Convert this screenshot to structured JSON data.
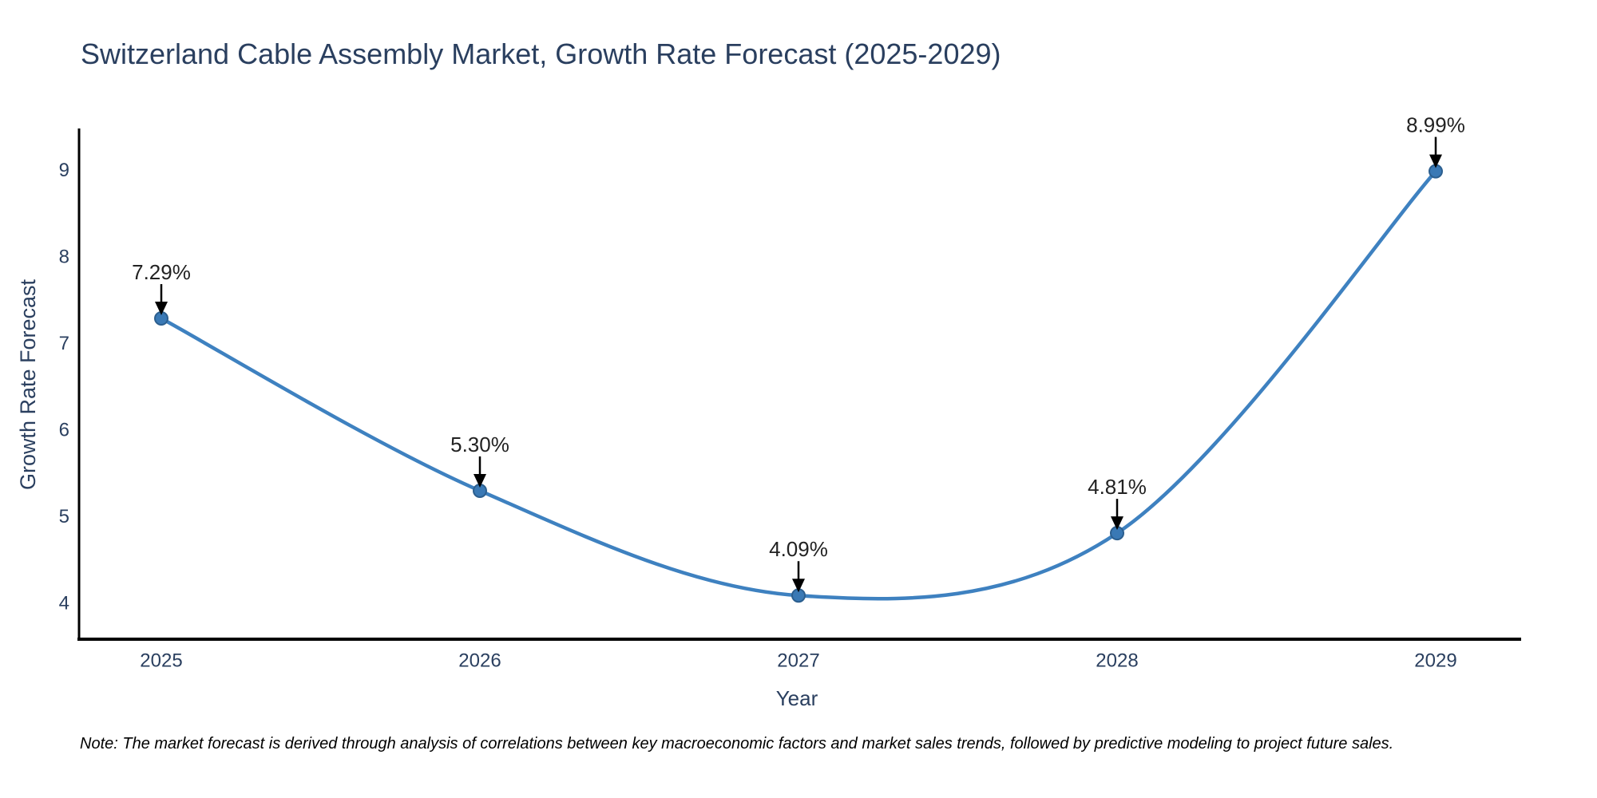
{
  "title": "Switzerland Cable Assembly Market, Growth Rate Forecast (2025-2029)",
  "note": "Note: The market forecast is derived through analysis of correlations between key macroeconomic factors and market sales trends, followed by predictive modeling to project future sales.",
  "chart_data": {
    "type": "line",
    "title": "Switzerland Cable Assembly Market, Growth Rate Forecast (2025-2029)",
    "xlabel": "Year",
    "ylabel": "Growth Rate Forecast",
    "categories": [
      "2025",
      "2026",
      "2027",
      "2028",
      "2029"
    ],
    "values": [
      7.29,
      5.3,
      4.09,
      4.81,
      8.99
    ],
    "point_labels": [
      "7.29%",
      "5.30%",
      "4.09%",
      "4.81%",
      "8.99%"
    ],
    "yticks": [
      4,
      5,
      6,
      7,
      8,
      9
    ],
    "ylim": [
      3.6,
      9.5
    ],
    "line_shape": "spline",
    "grid": false,
    "legend": "none",
    "annotation_style": "label above point with black down-arrow",
    "colors": {
      "line": "#3e81c0",
      "marker_fill": "#3a79b5",
      "marker_edge": "#2c5f8f",
      "axis_line": "#000000",
      "tick_text": "#2a3f5f",
      "annotation_text": "#222222",
      "arrow": "#000000",
      "background": "#ffffff"
    }
  }
}
